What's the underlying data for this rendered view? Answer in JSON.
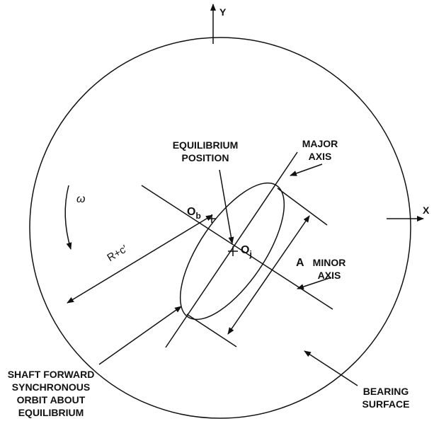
{
  "axes": {
    "y": "Y",
    "x": "X"
  },
  "labels": {
    "equilibrium_position": [
      "EQUILIBRIUM",
      "POSITION"
    ],
    "major_axis": [
      "MAJOR",
      "AXIS"
    ],
    "minor_axis": [
      "MINOR",
      "AXIS"
    ],
    "omega": "ω",
    "bearing_center": {
      "main": "O",
      "sub": "b"
    },
    "journal_center": {
      "main": "O",
      "sub": "j"
    },
    "amplitude": "A",
    "radius": "R+c′",
    "orbit": [
      "SHAFT FORWARD",
      "SYNCHRONOUS",
      "ORBIT ABOUT",
      "EQUILIBRIUM"
    ],
    "bearing_surface": [
      "BEARING",
      "SURFACE"
    ]
  }
}
